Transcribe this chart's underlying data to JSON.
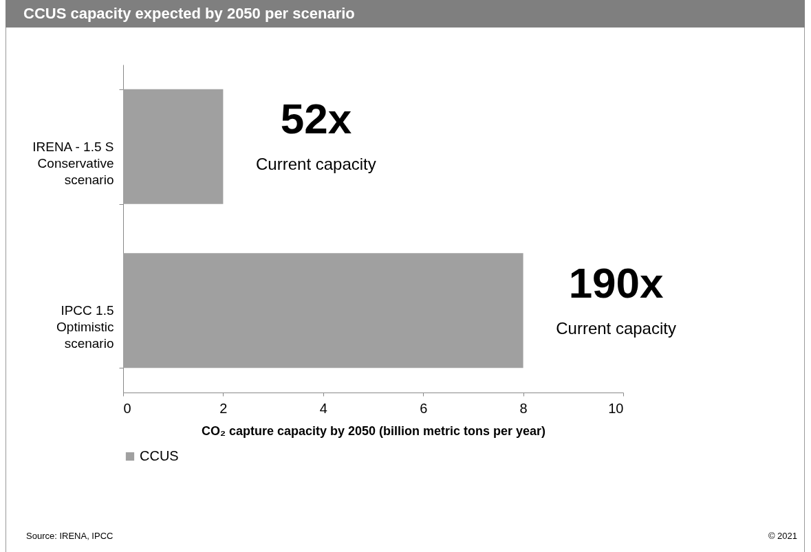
{
  "chart_data": {
    "type": "bar",
    "orientation": "horizontal",
    "title": "CCUS capacity expected by 2050 per scenario",
    "categories": [
      "IRENA - 1.5 S\nConservative\nscenario",
      "IPCC 1.5\nOptimistic\nscenario"
    ],
    "series": [
      {
        "name": "CCUS",
        "color": "#a0a0a0",
        "values": [
          2,
          8
        ]
      }
    ],
    "xlabel": "CO₂ capture capacity by 2050 (billion metric tons per year)",
    "xlim": [
      0,
      10
    ],
    "xticks": [
      0,
      2,
      4,
      6,
      8,
      10
    ],
    "grid": false,
    "legend": "bottom",
    "annotations": [
      "52x",
      "Current capacity",
      "190x",
      "Current capacity",
      "Source: IRENA, IPCC",
      "© 2021"
    ]
  }
}
